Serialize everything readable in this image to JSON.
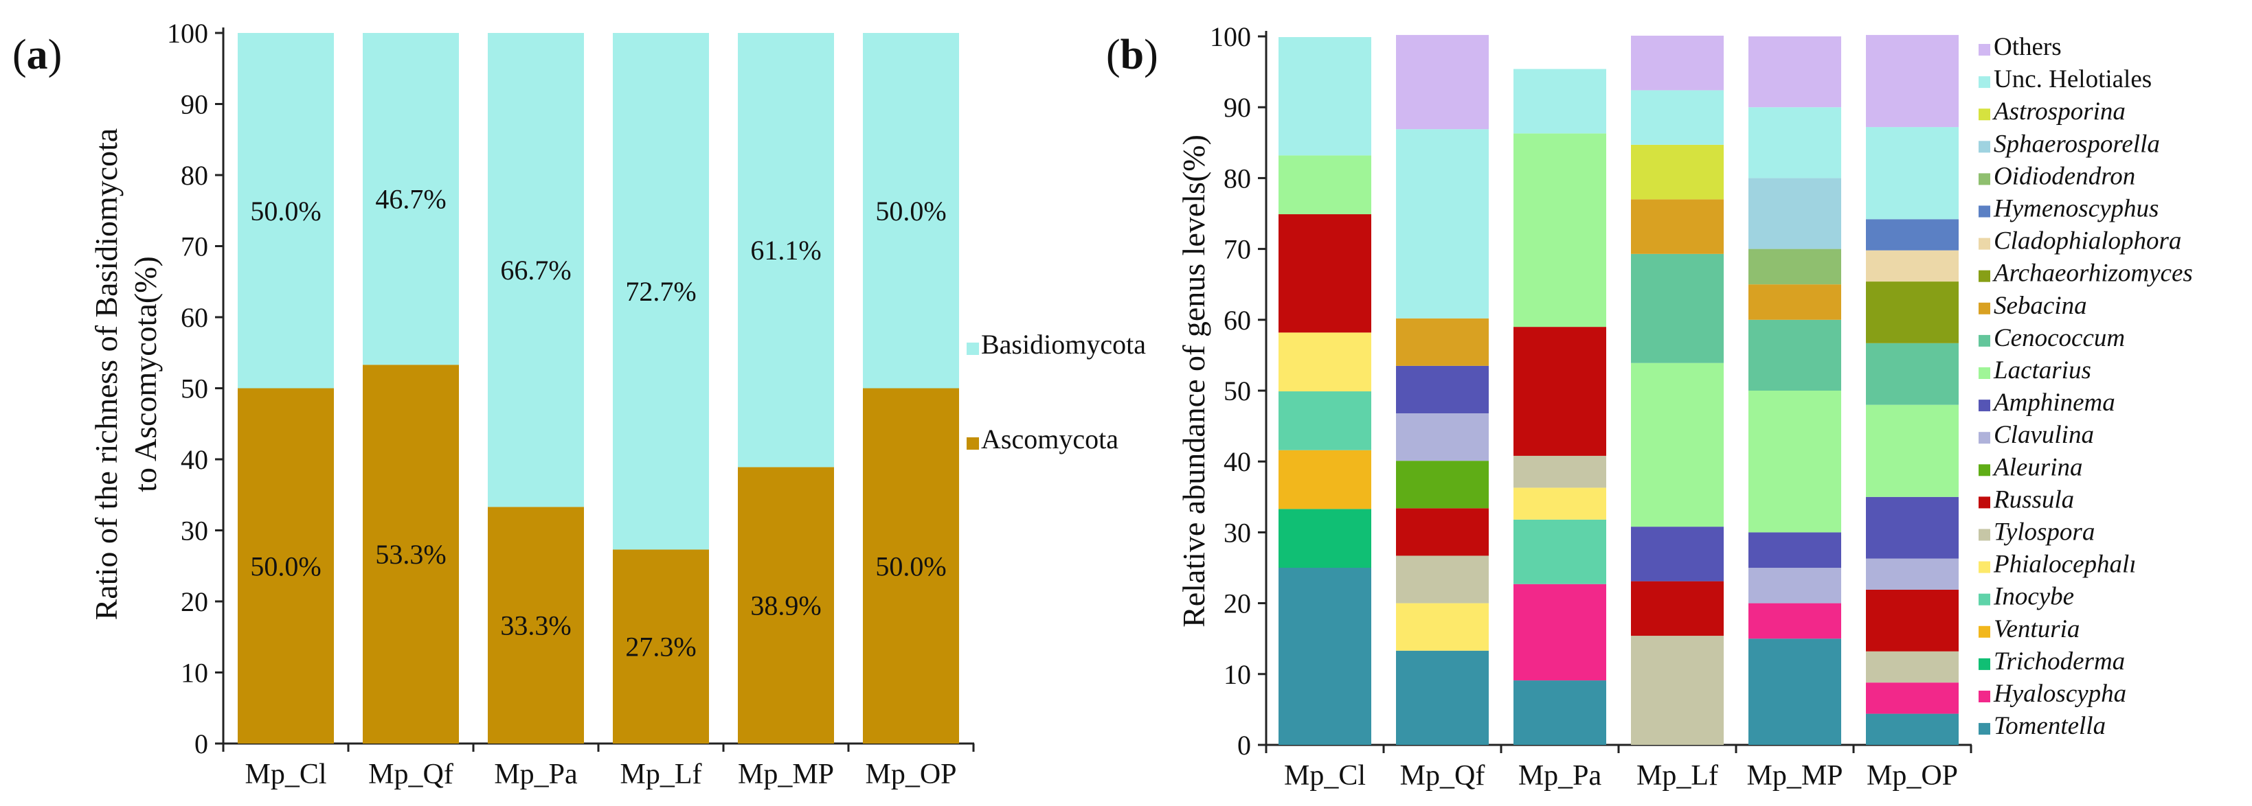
{
  "colors": {
    "Basidiomycota": "#a5efea",
    "Ascomycota": "#c48f05",
    "Others": "#d1b8f2",
    "Unc. Helotiales": "#a5efea",
    "Astrosporina": "#d6e23f",
    "Sphaerosporella": "#9fd3e0",
    "Oidiodendron": "#8fbf6f",
    "Hymenoscyphus": "#5b80c4",
    "Cladophialophora": "#ecd8a8",
    "Archaeorhizomyces": "#879f16",
    "Sebacina": "#d9a122",
    "Cenococcum": "#63c69b",
    "Lactarius": "#9ff597",
    "Amphinema": "#5555b5",
    "Clavulina": "#afb2da",
    "Aleurina": "#5fad16",
    "Russula": "#c20b0b",
    "Tylospora": "#c6c6a6",
    "Phialocephala": "#fde96a",
    "Inocybe": "#5fd3a9",
    "Venturia": "#f2b71c",
    "Trichoderma": "#10bf74",
    "Hyaloscypha": "#f2288a",
    "Tomentella": "#3893a6"
  },
  "panel_a": {
    "label_open": "(",
    "label_letter": "a",
    "label_close": ")",
    "ylabel_line1": "Ratio of  the richness of Basidiomycota",
    "ylabel_line2": "to Ascomycota(%)"
  },
  "panel_b": {
    "label_open": "(",
    "label_letter": "b",
    "label_close": ")",
    "ylabel": "Relative abundance of genus levels(%)"
  },
  "chart_data": [
    {
      "type": "bar",
      "stacked": true,
      "title": "",
      "xlabel": "",
      "ylabel": "Ratio of  the richness of Basidiomycota to Ascomycota(%)",
      "ylim": [
        0,
        100
      ],
      "yticks": [
        0,
        10,
        20,
        30,
        40,
        50,
        60,
        70,
        80,
        90,
        100
      ],
      "categories": [
        "Mp_Cl",
        "Mp_Qf",
        "Mp_Pa",
        "Mp_Lf",
        "Mp_MP",
        "Mp_OP"
      ],
      "series": [
        {
          "name": "Ascomycota",
          "values": [
            50.0,
            53.3,
            33.3,
            27.3,
            38.9,
            50.0
          ],
          "labels": [
            "50.0%",
            "53.3%",
            "33.3%",
            "27.3%",
            "38.9%",
            "50.0%"
          ]
        },
        {
          "name": "Basidiomycota",
          "values": [
            50.0,
            46.7,
            66.7,
            72.7,
            61.1,
            50.0
          ],
          "labels": [
            "50.0%",
            "46.7%",
            "66.7%",
            "72.7%",
            "61.1%",
            "50.0%"
          ]
        }
      ],
      "legend": [
        "Basidiomycota",
        "Ascomycota"
      ],
      "legend_position": "right"
    },
    {
      "type": "bar",
      "stacked": true,
      "title": "",
      "xlabel": "",
      "ylabel": "Relative abundance of genus levels(%)",
      "ylim": [
        0,
        100
      ],
      "yticks": [
        0,
        10,
        20,
        30,
        40,
        50,
        60,
        70,
        80,
        90,
        100
      ],
      "categories": [
        "Mp_Cl",
        "Mp_Qf",
        "Mp_Pa",
        "Mp_Lf",
        "Mp_MP",
        "Mp_OP"
      ],
      "series": [
        {
          "name": "Tomentella",
          "values": [
            25.0,
            13.3,
            9.1,
            0.0,
            15.0,
            4.4
          ]
        },
        {
          "name": "Hyaloscypha",
          "values": [
            0.0,
            0.0,
            13.6,
            0.0,
            5.0,
            4.4
          ]
        },
        {
          "name": "Trichoderma",
          "values": [
            8.3,
            0.0,
            0.0,
            0.0,
            0.0,
            0.0
          ]
        },
        {
          "name": "Venturia",
          "values": [
            8.3,
            0.0,
            0.0,
            0.0,
            0.0,
            0.0
          ]
        },
        {
          "name": "Inocybe",
          "values": [
            8.3,
            0.0,
            9.1,
            0.0,
            0.0,
            0.0
          ]
        },
        {
          "name": "Phialocephala",
          "values": [
            8.3,
            6.7,
            4.5,
            0.0,
            0.0,
            0.0
          ]
        },
        {
          "name": "Tylospora",
          "values": [
            0.0,
            6.7,
            4.5,
            15.4,
            0.0,
            4.4
          ]
        },
        {
          "name": "Russula",
          "values": [
            16.7,
            6.7,
            18.2,
            7.7,
            0.0,
            8.7
          ]
        },
        {
          "name": "Aleurina",
          "values": [
            0.0,
            6.7,
            0.0,
            0.0,
            0.0,
            0.0
          ]
        },
        {
          "name": "Clavulina",
          "values": [
            0.0,
            6.7,
            0.0,
            0.0,
            5.0,
            4.4
          ]
        },
        {
          "name": "Amphinema",
          "values": [
            0.0,
            6.7,
            0.0,
            7.7,
            5.0,
            8.7
          ]
        },
        {
          "name": "Lactarius",
          "values": [
            8.3,
            0.0,
            27.3,
            23.1,
            20.0,
            13.0
          ]
        },
        {
          "name": "Cenococcum",
          "values": [
            0.0,
            0.0,
            0.0,
            15.4,
            10.0,
            8.7
          ]
        },
        {
          "name": "Sebacina",
          "values": [
            0.0,
            6.7,
            0.0,
            7.7,
            5.0,
            0.0
          ]
        },
        {
          "name": "Archaeorhizomyces",
          "values": [
            0.0,
            0.0,
            0.0,
            0.0,
            0.0,
            8.7
          ]
        },
        {
          "name": "Cladophialophora",
          "values": [
            0.0,
            0.0,
            0.0,
            0.0,
            0.0,
            4.4
          ]
        },
        {
          "name": "Hymenoscyphus",
          "values": [
            0.0,
            0.0,
            0.0,
            0.0,
            0.0,
            4.4
          ]
        },
        {
          "name": "Oidiodendron",
          "values": [
            0.0,
            0.0,
            0.0,
            0.0,
            5.0,
            0.0
          ]
        },
        {
          "name": "Sphaerosporella",
          "values": [
            0.0,
            0.0,
            0.0,
            0.0,
            10.0,
            0.0
          ]
        },
        {
          "name": "Astrosporina",
          "values": [
            0.0,
            0.0,
            0.0,
            7.7,
            0.0,
            0.0
          ]
        },
        {
          "name": "Unc. Helotiales",
          "values": [
            16.7,
            26.7,
            9.1,
            7.7,
            10.0,
            13.0
          ]
        },
        {
          "name": "Others",
          "values": [
            0.0,
            13.3,
            0.0,
            7.7,
            10.0,
            13.0
          ]
        }
      ],
      "legend": [
        {
          "name": "Others",
          "italic": false
        },
        {
          "name": "Unc. Helotiales",
          "italic": false
        },
        {
          "name": "Astrosporina",
          "italic": true
        },
        {
          "name": "Sphaerosporella",
          "italic": true
        },
        {
          "name": "Oidiodendron",
          "italic": true
        },
        {
          "name": "Hymenoscyphus",
          "italic": true
        },
        {
          "name": "Cladophialophora",
          "italic": true
        },
        {
          "name": "Archaeorhizomyces",
          "italic": true
        },
        {
          "name": "Sebacina",
          "italic": true
        },
        {
          "name": "Cenococcum",
          "italic": true
        },
        {
          "name": "Lactarius",
          "italic": true
        },
        {
          "name": "Amphinema",
          "italic": true
        },
        {
          "name": "Clavulina",
          "italic": true
        },
        {
          "name": "Aleurina",
          "italic": true
        },
        {
          "name": "Russula",
          "italic": true
        },
        {
          "name": "Tylospora",
          "italic": true
        },
        {
          "name": "Phialocephalı",
          "italic": true
        },
        {
          "name": "Inocybe",
          "italic": true
        },
        {
          "name": "Venturia",
          "italic": true
        },
        {
          "name": "Trichoderma",
          "italic": true
        },
        {
          "name": "Hyaloscypha",
          "italic": true
        },
        {
          "name": "Tomentella",
          "italic": true
        }
      ],
      "legend_position": "right"
    }
  ]
}
